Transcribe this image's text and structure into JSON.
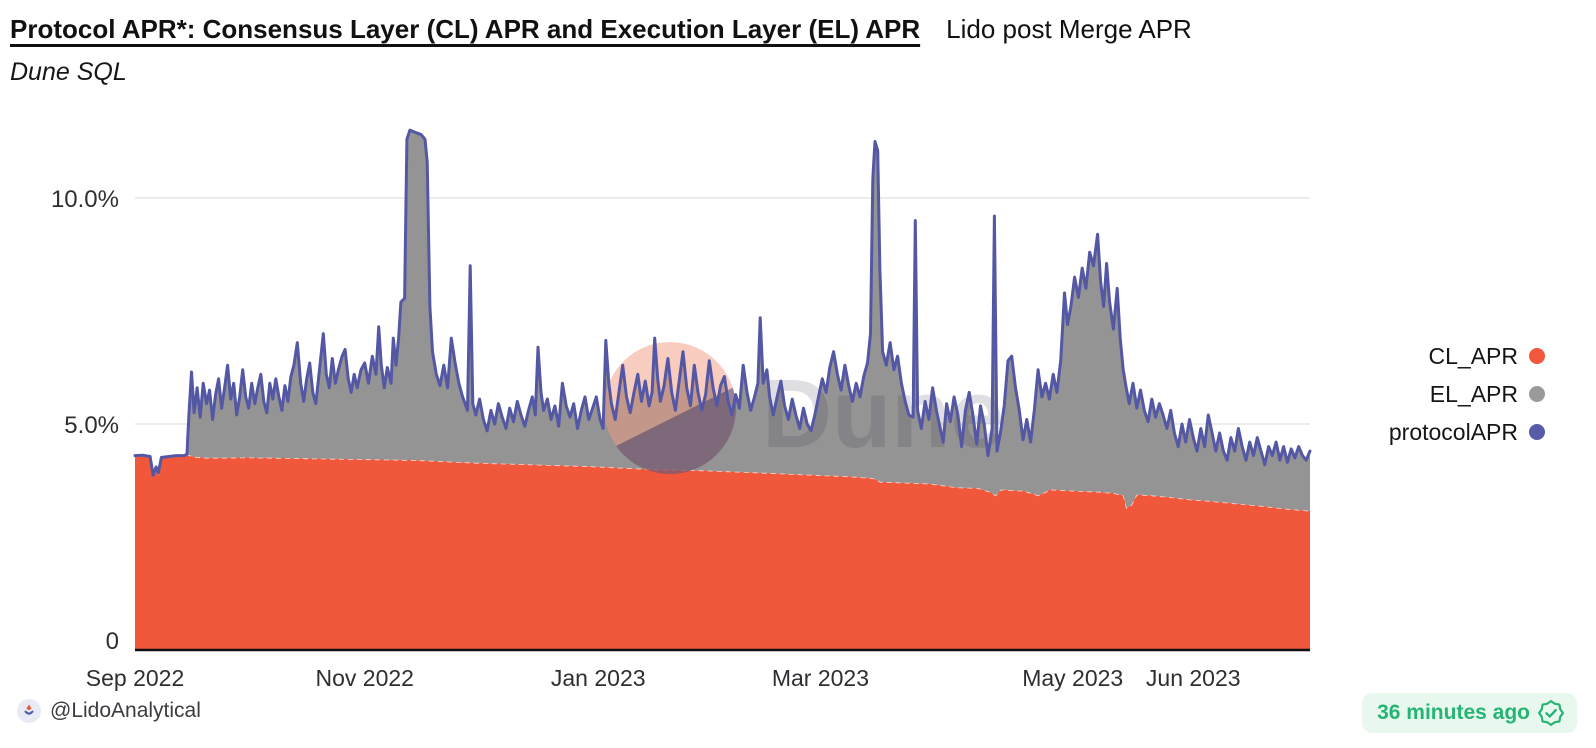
{
  "header": {
    "title": "Protocol APR*: Consensus Layer (CL) APR and Execution Layer (EL) APR",
    "subtitle": "Lido post Merge APR",
    "engine": "Dune SQL"
  },
  "legend": {
    "items": [
      {
        "label": "CL_APR",
        "color": "#F2583C"
      },
      {
        "label": "EL_APR",
        "color": "#9A9A9A"
      },
      {
        "label": "protocolAPR",
        "color": "#575CA8"
      }
    ]
  },
  "footer": {
    "author_handle": "@LidoAnalytical",
    "updated_text": "36 minutes ago",
    "badge_text_color": "#26b473",
    "badge_bg_color": "#e9f8ef"
  },
  "watermark": {
    "text": "Dune"
  },
  "chart_data": {
    "type": "area",
    "title": "Protocol APR*: Consensus Layer (CL) APR and Execution Layer (EL) APR",
    "subtitle": "Lido post Merge APR",
    "x_unit": "days since Sep 1 2022",
    "x_range_days": [
      0,
      312
    ],
    "ylim": [
      0,
      11.8
    ],
    "grid": "horizontal only",
    "legend_position": "right",
    "colors": {
      "cl_fill": "#F1573B",
      "el_fill": "#949494",
      "protocol_line": "#5458A4",
      "cl_edge_dash": "#ffffff",
      "gridline": "#ececec",
      "baseline": "#101014",
      "axis_text": "#2f2f33"
    },
    "y_ticks": [
      {
        "label": "0",
        "value": 0,
        "dy": -10
      },
      {
        "label": "5.0%",
        "value": 5,
        "dy": 0
      },
      {
        "label": "10.0%",
        "value": 10,
        "dy": 0
      }
    ],
    "x_ticks": [
      {
        "label": "Sep 2022",
        "day": 0
      },
      {
        "label": "Nov 2022",
        "day": 61
      },
      {
        "label": "Jan 2023",
        "day": 123
      },
      {
        "label": "Mar 2023",
        "day": 182
      },
      {
        "label": "May 2023",
        "day": 249
      },
      {
        "label": "Jun 2023",
        "day": 281
      }
    ],
    "el_apr": "derived: EL_APR = protocolAPR - CL_APR (gray band stacked between CL_APR and protocolAPR)",
    "cl_apr_points": [
      [
        0,
        4.3
      ],
      [
        2,
        4.31
      ],
      [
        4,
        4.28
      ],
      [
        4.8,
        3.87
      ],
      [
        5.6,
        4.05
      ],
      [
        6.2,
        3.92
      ],
      [
        7,
        4.26
      ],
      [
        9,
        4.28
      ],
      [
        13,
        4.3
      ],
      [
        14,
        4.32
      ],
      [
        16,
        4.27
      ],
      [
        20,
        4.25
      ],
      [
        30,
        4.26
      ],
      [
        45,
        4.24
      ],
      [
        61,
        4.22
      ],
      [
        75,
        4.2
      ],
      [
        91,
        4.14
      ],
      [
        107,
        4.1
      ],
      [
        122,
        4.06
      ],
      [
        137,
        4.0
      ],
      [
        152,
        3.97
      ],
      [
        167,
        3.92
      ],
      [
        181,
        3.87
      ],
      [
        190,
        3.84
      ],
      [
        196,
        3.8
      ],
      [
        198,
        3.72
      ],
      [
        205,
        3.7
      ],
      [
        211,
        3.68
      ],
      [
        218,
        3.6
      ],
      [
        224,
        3.58
      ],
      [
        227,
        3.5
      ],
      [
        228.5,
        3.42
      ],
      [
        230,
        3.55
      ],
      [
        236,
        3.52
      ],
      [
        240,
        3.42
      ],
      [
        243,
        3.55
      ],
      [
        250,
        3.52
      ],
      [
        256,
        3.5
      ],
      [
        260,
        3.47
      ],
      [
        262.5,
        3.42
      ],
      [
        263.3,
        3.15
      ],
      [
        264.5,
        3.2
      ],
      [
        266,
        3.44
      ],
      [
        270,
        3.42
      ],
      [
        275,
        3.38
      ],
      [
        280,
        3.33
      ],
      [
        285,
        3.3
      ],
      [
        290,
        3.26
      ],
      [
        295,
        3.22
      ],
      [
        300,
        3.18
      ],
      [
        305,
        3.13
      ],
      [
        309,
        3.1
      ],
      [
        312,
        3.08
      ]
    ],
    "protocol_apr_points": [
      [
        0,
        4.3
      ],
      [
        2,
        4.31
      ],
      [
        4,
        4.28
      ],
      [
        4.8,
        3.87
      ],
      [
        5.6,
        4.05
      ],
      [
        6.2,
        3.92
      ],
      [
        7,
        4.26
      ],
      [
        9,
        4.28
      ],
      [
        11,
        4.3
      ],
      [
        13,
        4.3
      ],
      [
        13.8,
        4.33
      ],
      [
        14.3,
        5.2
      ],
      [
        15,
        6.15
      ],
      [
        15.7,
        5.25
      ],
      [
        16.5,
        5.8
      ],
      [
        17.3,
        5.15
      ],
      [
        18.1,
        5.9
      ],
      [
        19,
        5.45
      ],
      [
        19.8,
        5.75
      ],
      [
        20.6,
        5.1
      ],
      [
        21.4,
        5.65
      ],
      [
        22.2,
        6.0
      ],
      [
        23,
        5.35
      ],
      [
        23.8,
        5.8
      ],
      [
        24.6,
        6.3
      ],
      [
        25.4,
        5.55
      ],
      [
        26.2,
        5.9
      ],
      [
        27,
        5.2
      ],
      [
        27.8,
        5.6
      ],
      [
        28.6,
        6.2
      ],
      [
        29.4,
        5.6
      ],
      [
        30.2,
        5.35
      ],
      [
        31,
        5.9
      ],
      [
        31.8,
        5.45
      ],
      [
        32.6,
        5.8
      ],
      [
        33.4,
        6.1
      ],
      [
        34.2,
        5.5
      ],
      [
        35,
        5.25
      ],
      [
        35.8,
        5.9
      ],
      [
        36.6,
        5.55
      ],
      [
        37.4,
        6.0
      ],
      [
        38.2,
        5.6
      ],
      [
        39,
        5.3
      ],
      [
        39.8,
        5.85
      ],
      [
        40.6,
        5.5
      ],
      [
        41.4,
        6.05
      ],
      [
        42.2,
        6.3
      ],
      [
        43.1,
        6.8
      ],
      [
        44,
        5.9
      ],
      [
        44.8,
        5.5
      ],
      [
        45.6,
        6.0
      ],
      [
        46.4,
        6.35
      ],
      [
        47.2,
        5.7
      ],
      [
        48,
        5.45
      ],
      [
        49,
        6.2
      ],
      [
        50,
        7.0
      ],
      [
        50.8,
        6.1
      ],
      [
        51.6,
        5.8
      ],
      [
        52.4,
        6.45
      ],
      [
        53.2,
        5.9
      ],
      [
        54,
        6.2
      ],
      [
        55,
        6.5
      ],
      [
        55.8,
        6.65
      ],
      [
        56.6,
        6.0
      ],
      [
        57.4,
        5.7
      ],
      [
        58.2,
        6.1
      ],
      [
        59,
        5.8
      ],
      [
        60,
        6.2
      ],
      [
        61,
        6.35
      ],
      [
        62,
        5.9
      ],
      [
        63,
        6.5
      ],
      [
        64,
        6.1
      ],
      [
        64.7,
        7.15
      ],
      [
        65.4,
        6.3
      ],
      [
        66.2,
        5.8
      ],
      [
        67,
        6.25
      ],
      [
        68,
        5.9
      ],
      [
        68.6,
        6.9
      ],
      [
        69.3,
        6.3
      ],
      [
        70,
        6.9
      ],
      [
        70.6,
        7.7
      ],
      [
        71.6,
        7.78
      ],
      [
        72.2,
        11.3
      ],
      [
        73,
        11.5
      ],
      [
        74.5,
        11.45
      ],
      [
        76,
        11.4
      ],
      [
        77,
        11.3
      ],
      [
        77.6,
        10.8
      ],
      [
        78.3,
        7.6
      ],
      [
        79,
        6.6
      ],
      [
        80,
        6.1
      ],
      [
        81,
        5.85
      ],
      [
        82,
        6.3
      ],
      [
        83,
        5.8
      ],
      [
        84,
        6.9
      ],
      [
        85,
        6.35
      ],
      [
        86,
        5.9
      ],
      [
        87,
        5.6
      ],
      [
        88.3,
        5.3
      ],
      [
        89,
        8.5
      ],
      [
        89.7,
        5.45
      ],
      [
        90.5,
        5.2
      ],
      [
        91.5,
        5.55
      ],
      [
        92.5,
        5.1
      ],
      [
        93.5,
        4.85
      ],
      [
        94.5,
        5.3
      ],
      [
        95.5,
        5.0
      ],
      [
        96.5,
        5.45
      ],
      [
        97.5,
        5.15
      ],
      [
        98.5,
        4.9
      ],
      [
        99.5,
        5.35
      ],
      [
        100.5,
        5.05
      ],
      [
        101.5,
        5.5
      ],
      [
        102.5,
        5.2
      ],
      [
        103.5,
        4.95
      ],
      [
        104.5,
        5.3
      ],
      [
        105.5,
        5.6
      ],
      [
        106.3,
        5.2
      ],
      [
        107,
        6.7
      ],
      [
        107.8,
        5.7
      ],
      [
        108.5,
        5.3
      ],
      [
        109.5,
        5.55
      ],
      [
        110.5,
        5.1
      ],
      [
        111.5,
        5.4
      ],
      [
        112.5,
        4.95
      ],
      [
        113.5,
        5.9
      ],
      [
        114.5,
        5.4
      ],
      [
        115.5,
        5.15
      ],
      [
        116.5,
        5.45
      ],
      [
        117.5,
        4.9
      ],
      [
        118.5,
        5.3
      ],
      [
        119.5,
        5.6
      ],
      [
        120.5,
        5.1
      ],
      [
        121.5,
        5.35
      ],
      [
        122.5,
        5.6
      ],
      [
        123.5,
        5.1
      ],
      [
        124.3,
        4.9
      ],
      [
        125,
        6.85
      ],
      [
        125.8,
        5.9
      ],
      [
        126.5,
        5.45
      ],
      [
        127.5,
        5.1
      ],
      [
        128.5,
        5.7
      ],
      [
        129.5,
        6.3
      ],
      [
        130.5,
        5.6
      ],
      [
        131.5,
        5.25
      ],
      [
        132.5,
        5.7
      ],
      [
        133.5,
        6.1
      ],
      [
        134.5,
        5.5
      ],
      [
        135.5,
        5.95
      ],
      [
        136.5,
        5.4
      ],
      [
        137.3,
        5.7
      ],
      [
        138,
        6.9
      ],
      [
        138.8,
        6.0
      ],
      [
        139.5,
        5.5
      ],
      [
        140.5,
        5.85
      ],
      [
        141.5,
        6.45
      ],
      [
        142.5,
        5.7
      ],
      [
        143.5,
        5.3
      ],
      [
        144.5,
        5.95
      ],
      [
        145.5,
        6.6
      ],
      [
        146.5,
        5.8
      ],
      [
        147.5,
        5.4
      ],
      [
        148.5,
        6.3
      ],
      [
        149.5,
        5.7
      ],
      [
        150.5,
        5.3
      ],
      [
        151.5,
        5.65
      ],
      [
        152.5,
        6.4
      ],
      [
        153.5,
        5.8
      ],
      [
        154.5,
        5.4
      ],
      [
        155.5,
        5.85
      ],
      [
        156.5,
        6.05
      ],
      [
        157.5,
        5.5
      ],
      [
        158.5,
        5.2
      ],
      [
        159.5,
        5.65
      ],
      [
        160.5,
        5.35
      ],
      [
        161.5,
        6.3
      ],
      [
        162.5,
        5.7
      ],
      [
        163.5,
        5.3
      ],
      [
        164.5,
        5.6
      ],
      [
        165.4,
        5.9
      ],
      [
        166,
        7.35
      ],
      [
        166.8,
        5.9
      ],
      [
        167.8,
        6.2
      ],
      [
        168.5,
        5.6
      ],
      [
        169.5,
        5.2
      ],
      [
        170.5,
        5.6
      ],
      [
        171.5,
        5.95
      ],
      [
        172.5,
        5.4
      ],
      [
        173.5,
        5.1
      ],
      [
        174.5,
        5.55
      ],
      [
        175.5,
        5.2
      ],
      [
        176.5,
        4.9
      ],
      [
        177.5,
        5.35
      ],
      [
        178.5,
        5.0
      ],
      [
        179.5,
        4.85
      ],
      [
        180.5,
        5.2
      ],
      [
        181.5,
        5.6
      ],
      [
        182.5,
        6.0
      ],
      [
        183.5,
        5.7
      ],
      [
        184.5,
        6.25
      ],
      [
        185.5,
        6.6
      ],
      [
        186.5,
        6.1
      ],
      [
        187.5,
        5.75
      ],
      [
        188.5,
        6.3
      ],
      [
        189.5,
        5.85
      ],
      [
        190.5,
        5.5
      ],
      [
        191.5,
        5.9
      ],
      [
        192.5,
        5.6
      ],
      [
        193.5,
        6.05
      ],
      [
        194.5,
        6.35
      ],
      [
        195.3,
        7.0
      ],
      [
        195.9,
        10.4
      ],
      [
        196.5,
        11.25
      ],
      [
        197.2,
        11.05
      ],
      [
        197.8,
        8.4
      ],
      [
        198.5,
        6.6
      ],
      [
        199.5,
        6.3
      ],
      [
        200.5,
        6.8
      ],
      [
        201.5,
        6.2
      ],
      [
        202.5,
        6.5
      ],
      [
        203.5,
        5.9
      ],
      [
        204.5,
        5.5
      ],
      [
        205.5,
        5.2
      ],
      [
        206.6,
        5.15
      ],
      [
        207.2,
        9.5
      ],
      [
        207.8,
        5.3
      ],
      [
        208.8,
        4.9
      ],
      [
        209.8,
        5.5
      ],
      [
        210.8,
        5.1
      ],
      [
        211.8,
        5.8
      ],
      [
        212.8,
        5.3
      ],
      [
        213.8,
        4.9
      ],
      [
        214.6,
        4.6
      ],
      [
        215.5,
        5.45
      ],
      [
        216.5,
        5.05
      ],
      [
        217.5,
        5.6
      ],
      [
        218.5,
        5.2
      ],
      [
        219.5,
        4.5
      ],
      [
        220.5,
        5.3
      ],
      [
        221.5,
        5.7
      ],
      [
        222.5,
        5.2
      ],
      [
        223.5,
        4.55
      ],
      [
        224.5,
        5.4
      ],
      [
        225.5,
        5.0
      ],
      [
        226.5,
        4.3
      ],
      [
        227.6,
        4.9
      ],
      [
        228.2,
        9.6
      ],
      [
        228.9,
        4.4
      ],
      [
        229.8,
        4.8
      ],
      [
        230.8,
        5.4
      ],
      [
        231.8,
        6.4
      ],
      [
        232.8,
        6.5
      ],
      [
        233.8,
        5.8
      ],
      [
        234.8,
        5.3
      ],
      [
        235.8,
        4.65
      ],
      [
        236.8,
        5.1
      ],
      [
        237.8,
        4.6
      ],
      [
        238.8,
        5.3
      ],
      [
        239.8,
        6.2
      ],
      [
        240.8,
        5.6
      ],
      [
        241.8,
        5.9
      ],
      [
        242.8,
        5.55
      ],
      [
        243.8,
        6.1
      ],
      [
        244.8,
        5.7
      ],
      [
        245.8,
        6.4
      ],
      [
        246.8,
        7.9
      ],
      [
        247.6,
        7.2
      ],
      [
        248.5,
        7.6
      ],
      [
        249.5,
        8.25
      ],
      [
        250.5,
        7.8
      ],
      [
        251.5,
        8.45
      ],
      [
        252.5,
        8.0
      ],
      [
        253.5,
        8.8
      ],
      [
        254.5,
        8.5
      ],
      [
        255.6,
        9.2
      ],
      [
        256.4,
        8.15
      ],
      [
        257.2,
        7.6
      ],
      [
        258,
        8.55
      ],
      [
        258.8,
        7.7
      ],
      [
        259.8,
        7.1
      ],
      [
        260.8,
        8.0
      ],
      [
        261.6,
        6.9
      ],
      [
        262.4,
        6.2
      ],
      [
        263.2,
        5.8
      ],
      [
        264,
        5.45
      ],
      [
        265,
        5.9
      ],
      [
        266,
        5.35
      ],
      [
        267,
        5.75
      ],
      [
        268,
        5.3
      ],
      [
        269,
        5.05
      ],
      [
        270,
        5.55
      ],
      [
        271,
        5.15
      ],
      [
        272,
        5.45
      ],
      [
        273,
        5.2
      ],
      [
        274,
        4.9
      ],
      [
        275,
        5.3
      ],
      [
        276,
        4.8
      ],
      [
        277,
        4.5
      ],
      [
        278,
        5.0
      ],
      [
        279,
        4.6
      ],
      [
        280,
        5.1
      ],
      [
        281,
        4.7
      ],
      [
        282,
        4.4
      ],
      [
        283,
        4.9
      ],
      [
        284,
        4.5
      ],
      [
        285,
        5.2
      ],
      [
        286,
        4.8
      ],
      [
        287,
        4.4
      ],
      [
        288,
        4.8
      ],
      [
        289,
        4.4
      ],
      [
        290,
        4.2
      ],
      [
        291,
        4.7
      ],
      [
        292,
        4.4
      ],
      [
        293,
        4.9
      ],
      [
        294,
        4.5
      ],
      [
        295,
        4.2
      ],
      [
        296,
        4.6
      ],
      [
        297,
        4.3
      ],
      [
        298,
        4.7
      ],
      [
        299,
        4.4
      ],
      [
        300,
        4.1
      ],
      [
        301,
        4.5
      ],
      [
        302,
        4.3
      ],
      [
        303,
        4.6
      ],
      [
        304,
        4.2
      ],
      [
        305,
        4.5
      ],
      [
        306,
        4.15
      ],
      [
        307,
        4.45
      ],
      [
        308,
        4.25
      ],
      [
        309,
        4.5
      ],
      [
        310,
        4.3
      ],
      [
        311,
        4.2
      ],
      [
        312,
        4.4
      ]
    ]
  }
}
